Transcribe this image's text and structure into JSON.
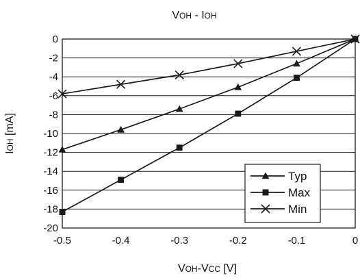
{
  "chart_data": {
    "type": "line",
    "title": "VOH - IOH",
    "title_parts": [
      {
        "text": "V",
        "style": "normal"
      },
      {
        "text": "OH",
        "style": "small"
      },
      {
        "text": " - I",
        "style": "normal"
      },
      {
        "text": "OH",
        "style": "small"
      }
    ],
    "xlabel": "VOH-Vcc [V]",
    "xlabel_parts": [
      {
        "text": "V",
        "style": "normal"
      },
      {
        "text": "OH",
        "style": "small"
      },
      {
        "text": "-V",
        "style": "normal"
      },
      {
        "text": "CC",
        "style": "small"
      },
      {
        "text": " [V]",
        "style": "normal"
      }
    ],
    "ylabel": "IOH [mA]",
    "ylabel_parts": [
      {
        "text": "I",
        "style": "normal"
      },
      {
        "text": "OH",
        "style": "small"
      },
      {
        "text": " [mA]",
        "style": "normal"
      }
    ],
    "xlim": [
      -0.5,
      0
    ],
    "ylim": [
      -20,
      0
    ],
    "x_ticks": [
      -0.5,
      -0.4,
      -0.3,
      -0.2,
      -0.1,
      0
    ],
    "x_tick_labels": [
      "-0.5",
      "-0.4",
      "-0.3",
      "-0.2",
      "-0.1",
      "0"
    ],
    "y_ticks": [
      0,
      -2,
      -4,
      -6,
      -8,
      -10,
      -12,
      -14,
      -16,
      -18,
      -20
    ],
    "y_tick_labels": [
      "0",
      "-2",
      "-4",
      "-6",
      "-8",
      "-10",
      "-12",
      "-14",
      "-16",
      "-18",
      "-20"
    ],
    "grid": {
      "horizontal": true,
      "vertical": false
    },
    "legend_position": "bottom-right",
    "x": [
      -0.5,
      -0.4,
      -0.3,
      -0.2,
      -0.1,
      0
    ],
    "series": [
      {
        "name": "Typ",
        "marker": "triangle",
        "values": [
          -11.7,
          -9.6,
          -7.4,
          -5.1,
          -2.6,
          0
        ]
      },
      {
        "name": "Max",
        "marker": "square",
        "values": [
          -18.3,
          -14.9,
          -11.5,
          -7.9,
          -4.1,
          0
        ]
      },
      {
        "name": "Min",
        "marker": "cross",
        "values": [
          -5.8,
          -4.8,
          -3.8,
          -2.6,
          -1.3,
          0
        ]
      }
    ],
    "colors": {
      "line": "#1a1a1a",
      "grid": "#1a1a1a",
      "background": "#ffffff"
    }
  }
}
